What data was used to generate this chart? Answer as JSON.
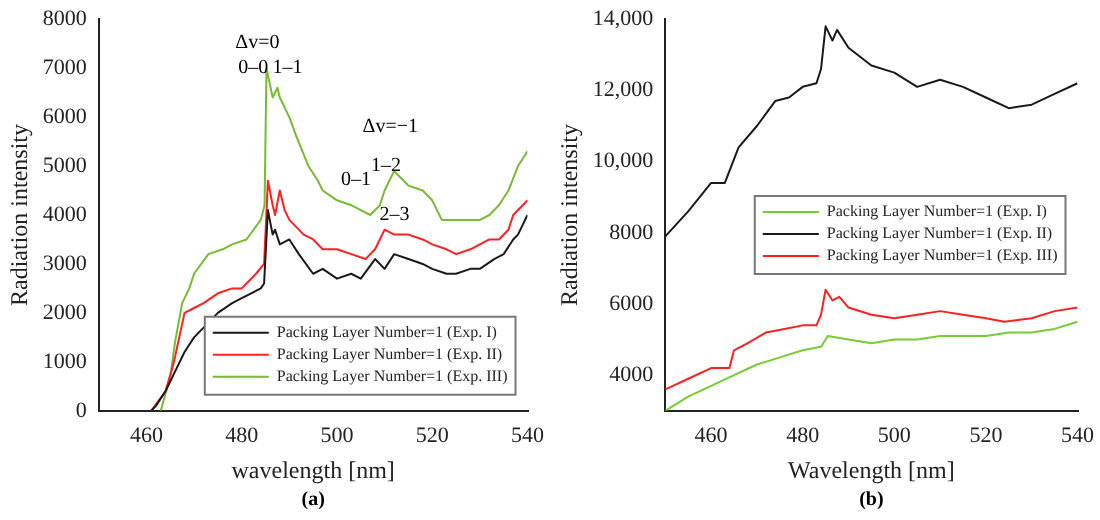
{
  "chart_data": [
    {
      "type": "line",
      "xlabel": "wavelength [nm]",
      "ylabel": "Radiation intensity",
      "xlim": [
        450,
        540
      ],
      "xticks": [
        460,
        480,
        500,
        520,
        540
      ],
      "ylim": [
        0,
        8000
      ],
      "yticks": [
        0,
        1000,
        2000,
        3000,
        4000,
        5000,
        6000,
        7000,
        8000
      ],
      "legend": "bottom right",
      "grid": false,
      "marker": "none",
      "line_style": "solid",
      "annotations": [
        "Δv=0",
        "0–0",
        "1–1",
        "Δv=−1",
        "0–1",
        "1–2",
        "2–3",
        "(a)"
      ],
      "series": [
        {
          "name": "Packing Layer Number=1 (Exp. I)",
          "color": "#1a1a1a",
          "x": [
            461,
            462,
            464,
            466,
            468,
            470,
            472,
            475,
            478,
            480,
            482,
            484,
            484.7,
            485.5,
            486.5,
            487,
            488,
            490,
            492,
            495,
            497,
            500,
            503,
            505,
            508,
            510,
            512,
            515,
            518,
            520,
            523,
            525,
            528,
            530,
            533,
            535,
            537,
            538,
            540
          ],
          "values": [
            0,
            100,
            400,
            800,
            1200,
            1500,
            1700,
            2000,
            2200,
            2300,
            2400,
            2500,
            2600,
            4100,
            3600,
            3700,
            3400,
            3500,
            3200,
            2800,
            2900,
            2700,
            2800,
            2700,
            3100,
            2900,
            3200,
            3100,
            3000,
            2900,
            2800,
            2800,
            2900,
            2900,
            3100,
            3200,
            3500,
            3600,
            4000
          ]
        },
        {
          "name": "Packing Layer Number=1 (Exp. II)",
          "color": "#ff2020",
          "x": [
            461,
            464,
            465.5,
            466,
            468,
            470,
            472,
            475,
            478,
            480,
            483,
            484.7,
            485.5,
            486.5,
            487,
            488,
            489,
            490,
            493,
            495,
            497,
            500,
            503,
            506,
            508,
            510,
            512,
            515,
            518,
            520,
            523,
            525,
            528,
            530,
            532,
            534,
            536,
            537,
            540
          ],
          "values": [
            0,
            400,
            900,
            1100,
            2000,
            2100,
            2200,
            2400,
            2500,
            2500,
            2800,
            3000,
            4700,
            4200,
            4000,
            4500,
            4100,
            3900,
            3600,
            3500,
            3300,
            3300,
            3200,
            3100,
            3300,
            3700,
            3600,
            3600,
            3500,
            3400,
            3300,
            3200,
            3300,
            3400,
            3500,
            3500,
            3700,
            4000,
            4300
          ]
        },
        {
          "name": "Packing Layer Number=1 (Exp. III)",
          "color": "#77bb33",
          "x": [
            463,
            465,
            466,
            467.5,
            469,
            470,
            473,
            476,
            478,
            481,
            484,
            484.8,
            485.2,
            486.5,
            487.5,
            488,
            490,
            491.5,
            494,
            496,
            497,
            500,
            503,
            505,
            507,
            509,
            510,
            512,
            514,
            515,
            518,
            520,
            522,
            525,
            527,
            530,
            532,
            534,
            536,
            538,
            540
          ],
          "values": [
            0,
            700,
            1400,
            2200,
            2500,
            2800,
            3200,
            3300,
            3400,
            3500,
            3900,
            4200,
            7000,
            6400,
            6600,
            6400,
            6000,
            5600,
            5000,
            4700,
            4500,
            4300,
            4200,
            4100,
            4000,
            4200,
            4500,
            4900,
            4700,
            4600,
            4500,
            4300,
            3900,
            3900,
            3900,
            3900,
            4000,
            4200,
            4500,
            5000,
            5300
          ]
        }
      ]
    },
    {
      "type": "line",
      "xlabel": "Wavelength [nm]",
      "ylabel": "Radiation intensity",
      "xlim": [
        450,
        540
      ],
      "xticks": [
        460,
        480,
        500,
        520,
        540
      ],
      "ylim": [
        3000,
        14000
      ],
      "yticks": [
        4000,
        6000,
        8000,
        {
          "value": 10000,
          "label": "10,000"
        },
        {
          "value": 12000,
          "label": "12,000"
        },
        {
          "value": 14000,
          "label": "14,000"
        }
      ],
      "legend": "right",
      "grid": false,
      "marker": "none",
      "line_style": "solid",
      "annotations": [
        "(b)"
      ],
      "series": [
        {
          "name": "Packing Layer Number=1 (Exp. I)",
          "color": "#77cc33",
          "x": [
            450,
            455,
            460,
            465,
            470,
            475,
            480,
            484,
            485.5,
            490,
            495,
            500,
            505,
            510,
            515,
            520,
            525,
            530,
            535,
            540
          ],
          "values": [
            3000,
            3400,
            3700,
            4000,
            4300,
            4500,
            4700,
            4800,
            5100,
            5000,
            4900,
            5000,
            5000,
            5100,
            5100,
            5100,
            5200,
            5200,
            5300,
            5500
          ]
        },
        {
          "name": "Packing Layer Number=1 (Exp. II)",
          "color": "#1a1a1a",
          "x": [
            450,
            455,
            460,
            463,
            466,
            470,
            474,
            477,
            480,
            483,
            484,
            485,
            486.5,
            487.5,
            490,
            495,
            500,
            505,
            510,
            515,
            520,
            525,
            530,
            535,
            540
          ],
          "values": [
            7900,
            8600,
            9400,
            9400,
            10400,
            11000,
            11700,
            11800,
            12100,
            12200,
            12600,
            13800,
            13400,
            13700,
            13200,
            12700,
            12500,
            12100,
            12300,
            12100,
            11800,
            11500,
            11600,
            11900,
            12200
          ]
        },
        {
          "name": "Packing Layer Number=1 (Exp. III)",
          "color": "#ff2020",
          "x": [
            450,
            455,
            460,
            464,
            465,
            468,
            472,
            476,
            480,
            483,
            484,
            485,
            486.5,
            488,
            490,
            495,
            500,
            505,
            510,
            515,
            520,
            524,
            530,
            535,
            540
          ],
          "values": [
            3600,
            3900,
            4200,
            4200,
            4700,
            4900,
            5200,
            5300,
            5400,
            5400,
            5700,
            6400,
            6100,
            6200,
            5900,
            5700,
            5600,
            5700,
            5800,
            5700,
            5600,
            5500,
            5600,
            5800,
            5900
          ]
        }
      ]
    }
  ]
}
